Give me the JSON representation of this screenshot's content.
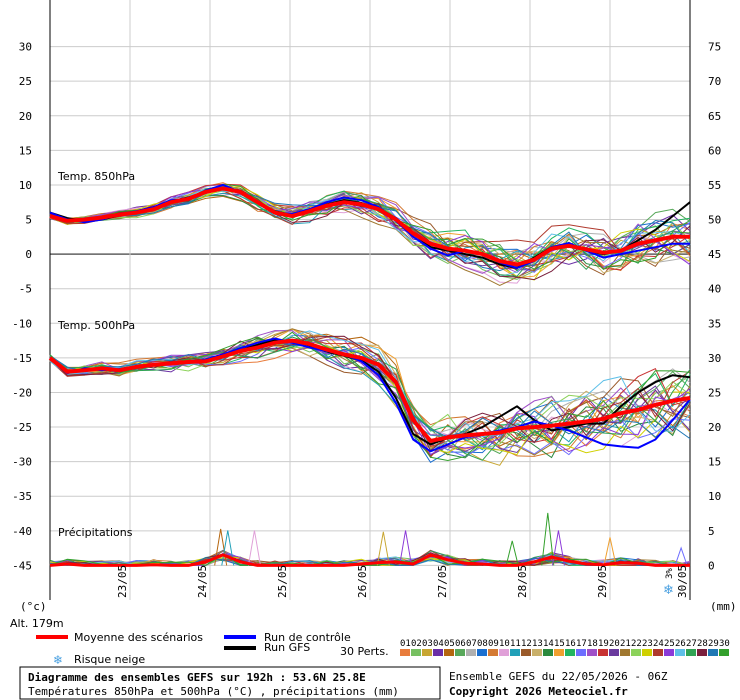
{
  "chart_data": {
    "type": "line",
    "left_axis": {
      "ylim": [
        -50,
        35
      ],
      "ticks": [
        30,
        25,
        20,
        15,
        10,
        5,
        0,
        -5,
        -10,
        -15,
        -20,
        -25,
        -30,
        -35,
        -40,
        -45
      ],
      "unit_label": "(°c)"
    },
    "right_axis": {
      "ticks": [
        75,
        70,
        65,
        60,
        55,
        50,
        45,
        40,
        35,
        30,
        25,
        20,
        15,
        10,
        5,
        0
      ],
      "unit_label": "(mm)"
    },
    "x_ticks": [
      "23/05",
      "24/05",
      "25/05",
      "26/05",
      "27/05",
      "28/05",
      "29/05",
      "30/05"
    ],
    "t850": {
      "label": "Temp. 850hPa",
      "mean": [
        5.5,
        4.8,
        5.0,
        5.3,
        5.7,
        6.0,
        6.5,
        7.5,
        8.0,
        9.0,
        9.5,
        9.0,
        7.5,
        6.0,
        5.5,
        6.2,
        7.0,
        7.5,
        7.2,
        6.5,
        5.0,
        3.0,
        1.5,
        0.8,
        0.5,
        0.0,
        -1.0,
        -1.5,
        -0.8,
        0.8,
        1.2,
        0.7,
        0.2,
        0.5,
        1.5,
        2.0,
        2.5,
        2.5
      ],
      "control": [
        6.0,
        5.0,
        4.6,
        5.0,
        5.8,
        6.2,
        6.8,
        7.8,
        8.0,
        9.2,
        10.0,
        9.0,
        7.6,
        6.0,
        5.8,
        6.5,
        7.5,
        8.2,
        7.8,
        6.8,
        4.8,
        2.5,
        0.8,
        -0.2,
        0.5,
        0.0,
        -1.2,
        -2.0,
        -1.0,
        1.0,
        1.6,
        0.5,
        -0.5,
        0.0,
        0.5,
        1.0,
        1.5,
        1.5
      ],
      "gfs": [
        6.0,
        5.2,
        4.8,
        5.0,
        5.6,
        6.0,
        6.6,
        7.6,
        8.2,
        9.0,
        9.6,
        9.0,
        7.4,
        6.2,
        5.6,
        6.2,
        7.2,
        7.8,
        7.4,
        6.6,
        5.2,
        3.0,
        1.0,
        0.5,
        0.0,
        -0.5,
        -1.5,
        -2.0,
        -0.5,
        1.0,
        1.5,
        0.5,
        0.0,
        0.5,
        2.0,
        3.5,
        5.5,
        7.5
      ]
    },
    "t500": {
      "label": "Temp. 500hPa",
      "mean": [
        -15.0,
        -17.0,
        -16.8,
        -16.5,
        -16.8,
        -16.3,
        -16.0,
        -15.8,
        -15.6,
        -15.5,
        -14.8,
        -14.0,
        -13.5,
        -12.8,
        -12.5,
        -13.0,
        -13.8,
        -14.5,
        -15.0,
        -16.0,
        -18.5,
        -24.0,
        -27.0,
        -26.5,
        -26.2,
        -26.0,
        -25.8,
        -25.2,
        -25.0,
        -24.8,
        -24.5,
        -24.2,
        -23.8,
        -23.0,
        -22.5,
        -21.8,
        -21.2,
        -20.8
      ],
      "control": [
        -15.0,
        -17.2,
        -16.5,
        -16.8,
        -16.6,
        -16.2,
        -16.0,
        -15.9,
        -15.7,
        -15.2,
        -14.5,
        -13.6,
        -12.8,
        -12.2,
        -12.8,
        -13.5,
        -14.0,
        -14.5,
        -15.5,
        -17.5,
        -21.5,
        -26.8,
        -28.5,
        -27.5,
        -26.5,
        -26.0,
        -25.5,
        -25.0,
        -24.2,
        -24.8,
        -25.5,
        -26.5,
        -27.5,
        -27.8,
        -28.0,
        -26.8,
        -24.0,
        -21.0
      ],
      "gfs": [
        -15.0,
        -17.0,
        -16.9,
        -16.4,
        -16.9,
        -16.4,
        -16.0,
        -15.8,
        -15.7,
        -15.4,
        -14.7,
        -13.9,
        -13.1,
        -12.4,
        -12.6,
        -13.2,
        -14.1,
        -14.7,
        -15.4,
        -17.0,
        -20.8,
        -26.0,
        -27.5,
        -26.6,
        -26.0,
        -25.0,
        -23.5,
        -22.0,
        -24.0,
        -25.5,
        -25.0,
        -24.5,
        -24.5,
        -22.0,
        -20.0,
        -18.5,
        -17.5,
        -17.8
      ]
    },
    "precip": {
      "label": "Précipitations",
      "mean": [
        0,
        0.2,
        0,
        0,
        0,
        0,
        0.1,
        0,
        0,
        0.5,
        1.5,
        0.5,
        0,
        0,
        0,
        0,
        0,
        0,
        0.2,
        0.4,
        0.5,
        0.2,
        1.5,
        0.8,
        0.3,
        0.2,
        0,
        0,
        0.5,
        1.2,
        0.6,
        0.2,
        0.1,
        0.4,
        0.3,
        0,
        0,
        0
      ],
      "spikes": [
        [
          19.2,
          5.2
        ],
        [
          20.0,
          5.0
        ],
        [
          56.0,
          7.5
        ],
        [
          57.2,
          5.0
        ],
        [
          23.0,
          5.0
        ],
        [
          37.5,
          4.8
        ],
        [
          40.0,
          5.0
        ],
        [
          52.0,
          3.5
        ],
        [
          63.0,
          4.0
        ],
        [
          71.0,
          2.5
        ]
      ]
    },
    "ensemble": {
      "t850_range": [
        -4.5,
        9.5
      ],
      "t500_range": [
        -34.0,
        -11.0
      ]
    },
    "snow_risk": {
      "label": "3%"
    },
    "colors": {
      "mean": "#ff0000",
      "control": "#0000ff",
      "gfs": "#000000",
      "perts": [
        "#e87c3c",
        "#77c061",
        "#c8a632",
        "#6b2fa6",
        "#b5660f",
        "#58a85a",
        "#b0b0b0",
        "#1a6fd0",
        "#d47a33",
        "#e0a0d8",
        "#21a0b8",
        "#9a5a2a",
        "#c9b06a",
        "#2b8a3e",
        "#f0a030",
        "#23b560",
        "#6e6eff",
        "#a050c8",
        "#c83232",
        "#6a3a9e",
        "#a07830",
        "#8cd25a",
        "#d0d000",
        "#b03a2e",
        "#8b3ad8",
        "#5fc0e8",
        "#31a354",
        "#7a1f3d",
        "#1f78b4",
        "#33a02c"
      ]
    }
  },
  "legend": {
    "mean": "Moyenne des scénarios",
    "control": "Run de contrôle",
    "gfs": "Run GFS",
    "snow": "Risque neige",
    "perts_label": "30 Perts.",
    "pert_numbers": [
      "01",
      "02",
      "03",
      "04",
      "05",
      "06",
      "07",
      "08",
      "09",
      "10",
      "11",
      "12",
      "13",
      "14",
      "15",
      "16",
      "17",
      "18",
      "19",
      "20",
      "21",
      "22",
      "23",
      "24",
      "25",
      "26",
      "27",
      "28",
      "29",
      "30"
    ]
  },
  "info": {
    "altitude": "Alt. 179m",
    "title": "Diagramme des ensembles GEFS sur 192h : 53.6N 25.8E",
    "subtitle": "Températures 850hPa et 500hPa (°C) , précipitations (mm)",
    "ensemble_run": "Ensemble GEFS du 22/05/2026 - 06Z",
    "copyright": "Copyright 2026 Meteociel.fr"
  }
}
